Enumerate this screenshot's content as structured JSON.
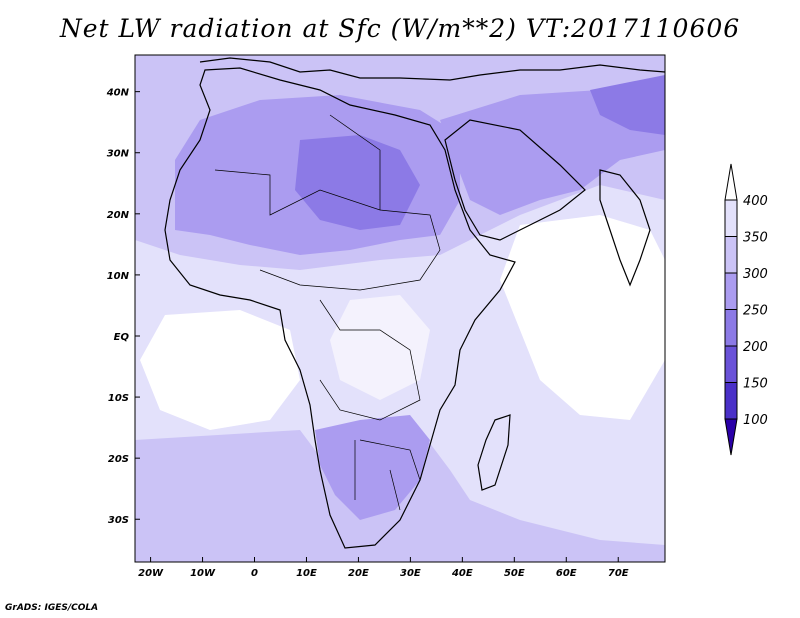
{
  "title": "Net LW radiation at Sfc (W/m**2) VT:2017110606",
  "footer": "GrADS: IGES/COLA",
  "map": {
    "lon_range": [
      -23,
      79
    ],
    "lat_range": [
      -37,
      46
    ],
    "lon_ticks": [
      {
        "value": -20,
        "label": "20W"
      },
      {
        "value": -10,
        "label": "10W"
      },
      {
        "value": 0,
        "label": "0"
      },
      {
        "value": 10,
        "label": "10E"
      },
      {
        "value": 20,
        "label": "20E"
      },
      {
        "value": 30,
        "label": "30E"
      },
      {
        "value": 40,
        "label": "40E"
      },
      {
        "value": 50,
        "label": "50E"
      },
      {
        "value": 60,
        "label": "60E"
      },
      {
        "value": 70,
        "label": "70E"
      }
    ],
    "lat_ticks": [
      {
        "value": 40,
        "label": "40N"
      },
      {
        "value": 30,
        "label": "30N"
      },
      {
        "value": 20,
        "label": "20N"
      },
      {
        "value": 10,
        "label": "10N"
      },
      {
        "value": 0,
        "label": "EQ"
      },
      {
        "value": -10,
        "label": "10S"
      },
      {
        "value": -20,
        "label": "20S"
      },
      {
        "value": -30,
        "label": "30S"
      }
    ]
  },
  "colorbar": {
    "levels": [
      "100",
      "150",
      "200",
      "250",
      "300",
      "350",
      "400"
    ],
    "colors": [
      "#2a00a8",
      "#4a30c8",
      "#6a52d8",
      "#8c7ae6",
      "#ab9cf0",
      "#cbc3f6",
      "#e3e1fb",
      "#ffffff"
    ]
  }
}
